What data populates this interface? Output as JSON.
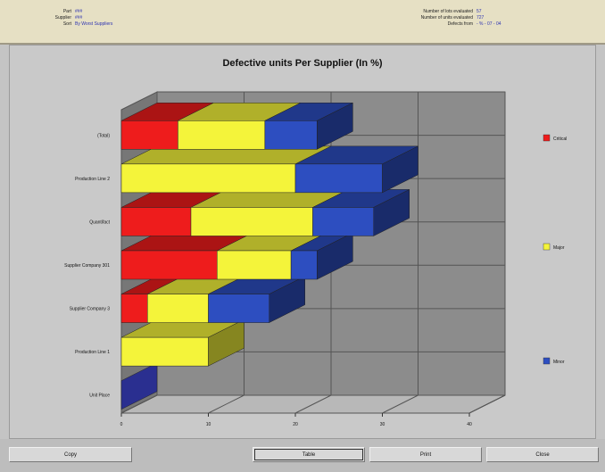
{
  "info": {
    "left": [
      {
        "label": "Part",
        "value": "###"
      },
      {
        "label": "Supplier",
        "value": "###"
      },
      {
        "label": "Sort",
        "value": "By Worst Suppliers"
      }
    ],
    "right": [
      {
        "label": "Number of lots evaluated",
        "value": "57"
      },
      {
        "label": "Number of units evaluated",
        "value": "727"
      },
      {
        "label": "Defects from",
        "value": "- % - 07 - 04"
      }
    ]
  },
  "chart_data": {
    "type": "bar",
    "orientation": "horizontal",
    "stacked": true,
    "three_d": true,
    "title": "Defective units Per Supplier (In %)",
    "categories": [
      "(Total)",
      "Production Line 2",
      "Quantifact",
      "Supplier Company 301",
      "Supplier Company 3",
      "Production Line 1",
      "Unit Place"
    ],
    "series": [
      {
        "name": "Critical",
        "color": "#ee1c1c",
        "values": [
          6.5,
          0,
          8,
          11,
          3,
          0,
          0
        ]
      },
      {
        "name": "Major",
        "color": "#f4f43a",
        "values": [
          10,
          20,
          14,
          8.5,
          7,
          10,
          0
        ]
      },
      {
        "name": "Minor",
        "color": "#2d4ec0",
        "values": [
          6,
          10,
          7,
          3,
          7,
          0,
          0
        ]
      }
    ],
    "xlim": [
      0,
      40
    ],
    "xticks": [
      "0",
      "10",
      "20",
      "30",
      "40"
    ],
    "grid": true,
    "legend_placement": "right"
  },
  "buttons": {
    "copy": "Copy",
    "table": "Table",
    "print": "Print",
    "close": "Close"
  }
}
